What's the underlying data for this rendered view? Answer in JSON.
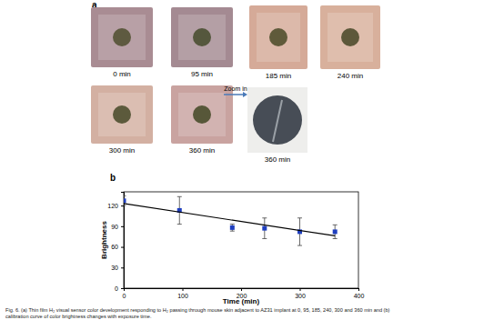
{
  "panel_a": {
    "label": "a",
    "images": [
      "0 min",
      "95 min",
      "185 min",
      "240 min",
      "300 min",
      "360 min"
    ],
    "zoom_label": "Zoom in",
    "zoom_image_label": "360 min"
  },
  "panel_b": {
    "label": "b"
  },
  "caption": [
    "Fig. 6. (a) Thin film H₂ visual sensor color development responding to H₂ passing through mouse skin adjacent to AZ31 implant at 0, 95, 185, 240, 300 and 360 min and (b)",
    "calibration curve of color brightness changes with exposure time."
  ],
  "chart_data": {
    "type": "scatter",
    "x_label": "Time (min)",
    "y_label": "Brightness",
    "xlim": [
      0,
      400
    ],
    "ylim": [
      0,
      140
    ],
    "xticks": [
      0,
      100,
      200,
      300,
      400
    ],
    "yticks": [
      0,
      30,
      60,
      90,
      120
    ],
    "series": [
      {
        "type": "scatter",
        "marker": "square",
        "color": "#1f3fbf",
        "x": [
          0,
          95,
          185,
          240,
          300,
          360
        ],
        "values": [
          127,
          113,
          88,
          87,
          82,
          82
        ],
        "error": [
          7,
          20,
          5,
          15,
          20,
          10
        ]
      },
      {
        "type": "line",
        "line_style": "solid",
        "color": "#000000",
        "x": [
          0,
          360
        ],
        "values": [
          123,
          76
        ]
      }
    ]
  }
}
